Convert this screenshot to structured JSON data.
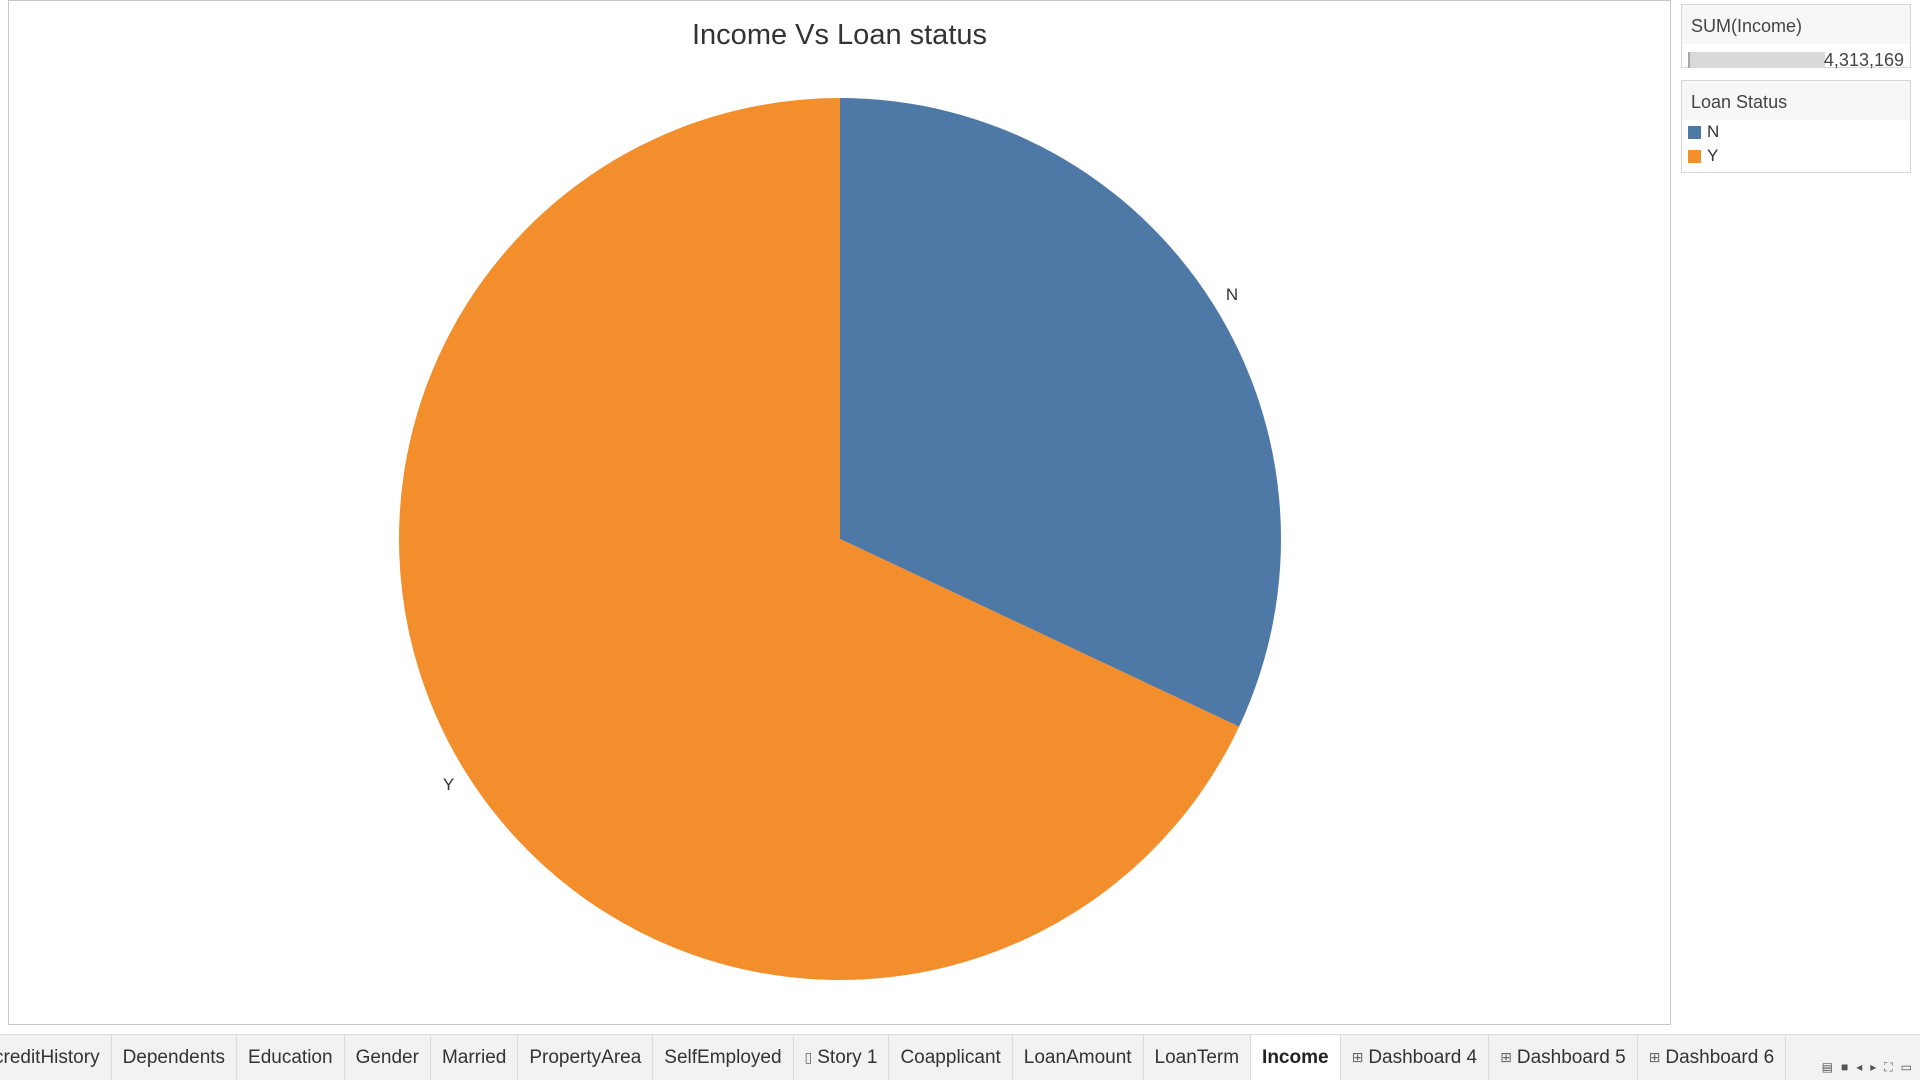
{
  "chart_data": {
    "type": "pie",
    "title": "Income Vs Loan status",
    "categories": [
      "N",
      "Y"
    ],
    "values": [
      1380000,
      2933169
    ],
    "total": 4313169,
    "colors": [
      "#4e79a7",
      "#f28e2b"
    ]
  },
  "side_panel": {
    "sum_title": "SUM(Income)",
    "sum_value": "4,313,169",
    "sum_fill_fraction": 1.0,
    "legend_title": "Loan Status",
    "legend_items": [
      {
        "label": "N",
        "color": "#4e79a7"
      },
      {
        "label": "Y",
        "color": "#f28e2b"
      }
    ]
  },
  "tabs": [
    {
      "label": "creditHistory"
    },
    {
      "label": "Dependents"
    },
    {
      "label": "Education"
    },
    {
      "label": "Gender"
    },
    {
      "label": "Married"
    },
    {
      "label": "PropertyArea"
    },
    {
      "label": "SelfEmployed"
    },
    {
      "label": "Story 1",
      "icon": "story-icon"
    },
    {
      "label": "Coapplicant"
    },
    {
      "label": "LoanAmount"
    },
    {
      "label": "LoanTerm"
    },
    {
      "label": "Income",
      "active": true
    },
    {
      "label": "Dashboard 4",
      "icon": "dashboard-icon"
    },
    {
      "label": "Dashboard 5",
      "icon": "dashboard-icon"
    },
    {
      "label": "Dashboard 6",
      "icon": "dashboard-icon"
    }
  ],
  "tab_controls": [
    "show-filmstrip-icon",
    "show-tabs-icon",
    "previous-sheet-icon",
    "next-sheet-icon",
    "fit-screen-icon",
    "presentation-icon"
  ]
}
